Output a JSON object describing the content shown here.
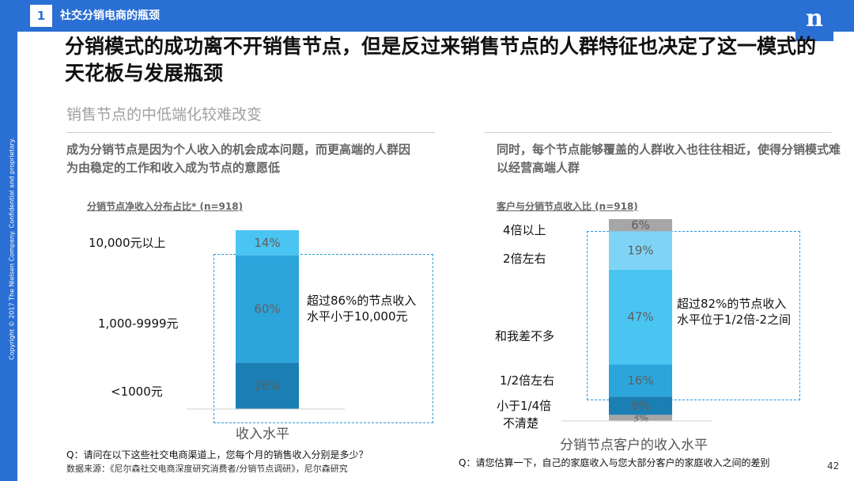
{
  "header": {
    "slide_number": "1",
    "section_title": "社交分销电商的瓶颈",
    "logo_text": "n",
    "copyright": "Copyright © 2017 The Nielsen Company. Confidential and proprietary."
  },
  "title": "分销模式的成功离不开销售节点，但是反过来销售节点的人群特征也决定了这一模式的天花板与发展瓶颈",
  "subtitle": "销售节点的中低端化较难改变",
  "left": {
    "heading": "成为分销节点是因为个人收入的机会成本问题，而更高端的人群因为由稳定的工作和收入成为节点的意愿低",
    "note": "超过86%的节点收入水平小于10,000元",
    "question": "Q：请问在以下这些社交电商渠道上，您每个月的销售收入分别是多少？",
    "source": "数据来源：《尼尔森社交电商深度研究消费者/分销节点调研》，尼尔森研究"
  },
  "right": {
    "heading": "同时，每个节点能够覆盖的人群收入也往往相近，使得分销模式难以经营高端人群",
    "note": "超过82%的节点收入水平位于1/2倍-2之间",
    "question": "Q：请您估算一下，自己的家庭收入与您大部分客户的家庭收入之间的差别"
  },
  "page_number": "42",
  "colors": {
    "brand": "#2a6fd3",
    "light_blue": "#4ac4f1",
    "pale_blue": "#7fd4f6",
    "mid_blue": "#2ba5dc",
    "dark_blue": "#1b7fb4",
    "grey": "#a6a6a6"
  },
  "chart_data": [
    {
      "type": "bar",
      "stacked": true,
      "title": "分销节点净收入分布占比* (n=918)",
      "xlabel": "收入水平",
      "categories": [
        "收入水平"
      ],
      "series": [
        {
          "name": "<1000元",
          "values": [
            26
          ],
          "label": "26%",
          "color": "#1b7fb4"
        },
        {
          "name": "1,000-9999元",
          "values": [
            60
          ],
          "label": "60%",
          "color": "#2ba5dc"
        },
        {
          "name": "10,000元以上",
          "values": [
            14
          ],
          "label": "14%",
          "color": "#4ac4f1"
        }
      ]
    },
    {
      "type": "bar",
      "stacked": true,
      "title": "客户与分销节点收入比 (n=918)",
      "xlabel": "分销节点客户的收入水平",
      "categories": [
        "分销节点客户的收入水平"
      ],
      "series": [
        {
          "name": "不清楚",
          "values": [
            3
          ],
          "label": "3%",
          "color": "#a6a6a6"
        },
        {
          "name": "小于1/4倍",
          "values": [
            9
          ],
          "label": "9%",
          "color": "#1b7fb4"
        },
        {
          "name": "1/2倍左右",
          "values": [
            16
          ],
          "label": "16%",
          "color": "#2ba5dc"
        },
        {
          "name": "和我差不多",
          "values": [
            47
          ],
          "label": "47%",
          "color": "#4ac4f1"
        },
        {
          "name": "2倍左右",
          "values": [
            19
          ],
          "label": "19%",
          "color": "#7fd4f6"
        },
        {
          "name": "4倍以上",
          "values": [
            6
          ],
          "label": "6%",
          "color": "#a6a6a6"
        }
      ]
    }
  ]
}
